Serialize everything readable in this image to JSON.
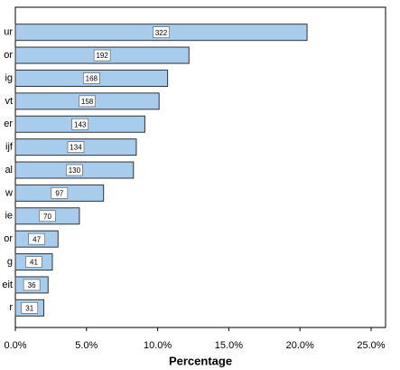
{
  "chart_data": {
    "type": "barh",
    "xlabel": "Percentage",
    "categories": [
      "ur",
      "or",
      "ig",
      "vt",
      "er",
      "ijf",
      "al",
      "w",
      "ie",
      "or",
      "g",
      "eit",
      "r"
    ],
    "values": [
      20.5,
      12.2,
      10.7,
      10.1,
      9.1,
      8.5,
      8.3,
      6.2,
      4.5,
      3.0,
      2.6,
      2.3,
      2.0
    ],
    "counts": [
      322,
      192,
      168,
      158,
      143,
      134,
      130,
      97,
      70,
      47,
      41,
      36,
      31
    ],
    "color": "#a8cdec",
    "xlim": [
      0,
      25
    ],
    "xticks": [
      {
        "value": 0,
        "label": "0.0%"
      },
      {
        "value": 5,
        "label": "5.0%"
      },
      {
        "value": 10,
        "label": "10.0%"
      },
      {
        "value": 15,
        "label": "15.0%"
      },
      {
        "value": 20,
        "label": "20.0%"
      },
      {
        "value": 25,
        "label": "25.0%"
      }
    ]
  }
}
